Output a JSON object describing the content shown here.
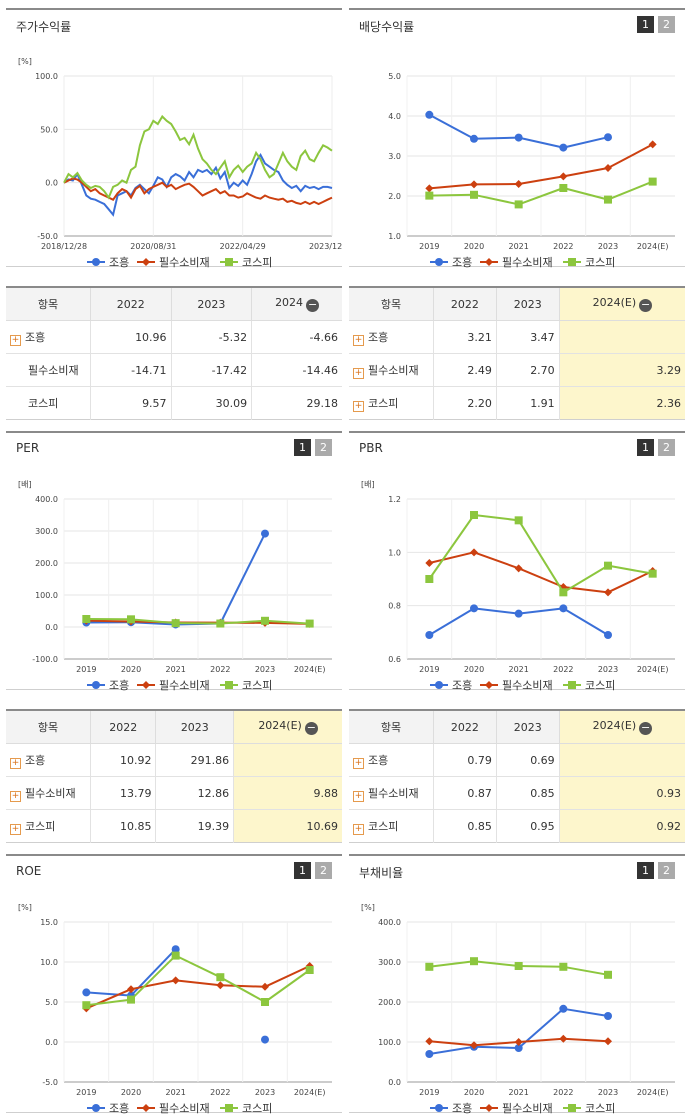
{
  "panels": {
    "stock": {
      "title": "주가수익률",
      "unit": "[%]"
    },
    "dividend": {
      "title": "배당수익률"
    },
    "per": {
      "title": "PER",
      "unit": "[배]"
    },
    "pbr": {
      "title": "PBR",
      "unit": "[배]"
    },
    "roe": {
      "title": "ROE",
      "unit": "[%]"
    },
    "debt": {
      "title": "부채비율",
      "unit": "[%]"
    }
  },
  "pager": {
    "one": "1",
    "two": "2"
  },
  "legend": {
    "s1": "조흥",
    "s2": "필수소비재",
    "s3": "코스피"
  },
  "colors": {
    "s1": "#3a6fd8",
    "s2": "#cc4010",
    "s3": "#8cc63e"
  },
  "tables": {
    "stock": {
      "headers": [
        "항목",
        "2022",
        "2023",
        "2024"
      ],
      "rows": [
        {
          "label": "조흥",
          "values": [
            "10.96",
            "-5.32",
            "-4.66"
          ]
        },
        {
          "label": "필수소비재",
          "values": [
            "-14.71",
            "-17.42",
            "-14.46"
          ]
        },
        {
          "label": "코스피",
          "values": [
            "9.57",
            "30.09",
            "29.18"
          ]
        }
      ]
    },
    "dividend": {
      "headers": [
        "항목",
        "2022",
        "2023",
        "2024(E)"
      ],
      "rows": [
        {
          "label": "조흥",
          "values": [
            "3.21",
            "3.47",
            ""
          ]
        },
        {
          "label": "필수소비재",
          "values": [
            "2.49",
            "2.70",
            "3.29"
          ]
        },
        {
          "label": "코스피",
          "values": [
            "2.20",
            "1.91",
            "2.36"
          ]
        }
      ]
    },
    "per": {
      "headers": [
        "항목",
        "2022",
        "2023",
        "2024(E)"
      ],
      "rows": [
        {
          "label": "조흥",
          "values": [
            "10.92",
            "291.86",
            ""
          ]
        },
        {
          "label": "필수소비재",
          "values": [
            "13.79",
            "12.86",
            "9.88"
          ]
        },
        {
          "label": "코스피",
          "values": [
            "10.85",
            "19.39",
            "10.69"
          ]
        }
      ]
    },
    "pbr": {
      "headers": [
        "항목",
        "2022",
        "2023",
        "2024(E)"
      ],
      "rows": [
        {
          "label": "조흥",
          "values": [
            "0.79",
            "0.69",
            ""
          ]
        },
        {
          "label": "필수소비재",
          "values": [
            "0.87",
            "0.85",
            "0.93"
          ]
        },
        {
          "label": "코스피",
          "values": [
            "0.85",
            "0.95",
            "0.92"
          ]
        }
      ]
    }
  },
  "chart_data": [
    {
      "id": "stock",
      "type": "line",
      "title": "주가수익률",
      "ylabel": "[%]",
      "ylim": [
        -50,
        100
      ],
      "yticks": [
        "100.0",
        "50.0",
        "0.0",
        "-50.0"
      ],
      "xticks": [
        "2018/12/28",
        "2020/08/31",
        "2022/04/29",
        "2023/12/28"
      ],
      "x_range": [
        0,
        60
      ],
      "series": [
        {
          "name": "조흥",
          "x": [
            0,
            1,
            2,
            3,
            4,
            5,
            6,
            7,
            8,
            9,
            10,
            11,
            12,
            13,
            14,
            15,
            16,
            17,
            18,
            19,
            20,
            21,
            22,
            23,
            24,
            25,
            26,
            27,
            28,
            29,
            30,
            31,
            32,
            33,
            34,
            35,
            36,
            37,
            38,
            39,
            40,
            41,
            42,
            43,
            44,
            45,
            46,
            47,
            48,
            49,
            50,
            51,
            52,
            53,
            54,
            55,
            56,
            57,
            58,
            59,
            60
          ],
          "values": [
            0,
            3,
            2,
            8,
            -2,
            -12,
            -15,
            -16,
            -18,
            -20,
            -25,
            -30,
            -12,
            -10,
            -8,
            -12,
            -5,
            -2,
            -6,
            -10,
            -3,
            5,
            3,
            -4,
            5,
            8,
            6,
            2,
            10,
            5,
            12,
            10,
            12,
            8,
            14,
            4,
            10,
            -5,
            0,
            -3,
            2,
            -2,
            8,
            20,
            26,
            18,
            15,
            12,
            10,
            2,
            -2,
            -5,
            -3,
            -8,
            -3,
            -5,
            -4,
            -6,
            -4,
            -4,
            -5
          ]
        },
        {
          "name": "필수소비재",
          "x": [
            0,
            1,
            2,
            3,
            4,
            5,
            6,
            7,
            8,
            9,
            10,
            11,
            12,
            13,
            14,
            15,
            16,
            17,
            18,
            19,
            20,
            21,
            22,
            23,
            24,
            25,
            26,
            27,
            28,
            29,
            30,
            31,
            32,
            33,
            34,
            35,
            36,
            37,
            38,
            39,
            40,
            41,
            42,
            43,
            44,
            45,
            46,
            47,
            48,
            49,
            50,
            51,
            52,
            53,
            54,
            55,
            56,
            57,
            58,
            59,
            60
          ],
          "values": [
            0,
            2,
            4,
            3,
            0,
            -4,
            -8,
            -6,
            -10,
            -12,
            -14,
            -16,
            -10,
            -6,
            -8,
            -14,
            -6,
            -3,
            -10,
            -6,
            -4,
            -2,
            0,
            -4,
            -2,
            -6,
            -4,
            -2,
            -1,
            -4,
            -8,
            -12,
            -10,
            -8,
            -6,
            -10,
            -8,
            -12,
            -12,
            -14,
            -13,
            -10,
            -12,
            -14,
            -15,
            -12,
            -14,
            -15,
            -16,
            -15,
            -18,
            -17,
            -19,
            -20,
            -18,
            -20,
            -18,
            -20,
            -18,
            -16,
            -14
          ]
        },
        {
          "name": "코스피",
          "x": [
            0,
            1,
            2,
            3,
            4,
            5,
            6,
            7,
            8,
            9,
            10,
            11,
            12,
            13,
            14,
            15,
            16,
            17,
            18,
            19,
            20,
            21,
            22,
            23,
            24,
            25,
            26,
            27,
            28,
            29,
            30,
            31,
            32,
            33,
            34,
            35,
            36,
            37,
            38,
            39,
            40,
            41,
            42,
            43,
            44,
            45,
            46,
            47,
            48,
            49,
            50,
            51,
            52,
            53,
            54,
            55,
            56,
            57,
            58,
            59,
            60
          ],
          "values": [
            0,
            8,
            5,
            9,
            2,
            -2,
            -5,
            -3,
            -4,
            -8,
            -14,
            -4,
            -2,
            2,
            0,
            12,
            15,
            35,
            48,
            50,
            58,
            55,
            62,
            58,
            55,
            48,
            40,
            42,
            36,
            45,
            32,
            22,
            18,
            12,
            8,
            14,
            20,
            5,
            12,
            16,
            10,
            15,
            18,
            28,
            22,
            12,
            5,
            8,
            18,
            28,
            20,
            15,
            12,
            25,
            30,
            22,
            20,
            28,
            35,
            33,
            30
          ]
        }
      ]
    },
    {
      "id": "dividend",
      "type": "line",
      "title": "배당수익률",
      "ylim": [
        1.0,
        5.0
      ],
      "yticks": [
        "5.0",
        "4.0",
        "3.0",
        "2.0",
        "1.0"
      ],
      "categories": [
        "2019",
        "2020",
        "2021",
        "2022",
        "2023",
        "2024(E)"
      ],
      "series": [
        {
          "name": "조흥",
          "values": [
            4.03,
            3.43,
            3.46,
            3.21,
            3.47,
            null
          ]
        },
        {
          "name": "필수소비재",
          "values": [
            2.19,
            2.29,
            2.3,
            2.49,
            2.7,
            3.29
          ]
        },
        {
          "name": "코스피",
          "values": [
            2.01,
            2.03,
            1.79,
            2.2,
            1.91,
            2.36
          ]
        }
      ]
    },
    {
      "id": "per",
      "type": "line",
      "title": "PER",
      "ylabel": "[배]",
      "ylim": [
        -100,
        400
      ],
      "yticks": [
        "400.0",
        "300.0",
        "200.0",
        "100.0",
        "0.0",
        "-100.0"
      ],
      "categories": [
        "2019",
        "2020",
        "2021",
        "2022",
        "2023",
        "2024(E)"
      ],
      "series": [
        {
          "name": "조흥",
          "values": [
            14,
            15,
            8,
            10.92,
            291.86,
            null
          ]
        },
        {
          "name": "필수소비재",
          "values": [
            20,
            17,
            14,
            13.79,
            12.86,
            9.88
          ]
        },
        {
          "name": "코스피",
          "values": [
            25,
            24,
            12,
            10.85,
            19.39,
            10.69
          ]
        }
      ]
    },
    {
      "id": "pbr",
      "type": "line",
      "title": "PBR",
      "ylabel": "[배]",
      "ylim": [
        0.6,
        1.2
      ],
      "yticks": [
        "1.2",
        "1.0",
        "0.8",
        "0.6"
      ],
      "categories": [
        "2019",
        "2020",
        "2021",
        "2022",
        "2023",
        "2024(E)"
      ],
      "series": [
        {
          "name": "조흥",
          "values": [
            0.69,
            0.79,
            0.77,
            0.79,
            0.69,
            null
          ]
        },
        {
          "name": "필수소비재",
          "values": [
            0.96,
            1.0,
            0.94,
            0.87,
            0.85,
            0.93
          ]
        },
        {
          "name": "코스피",
          "values": [
            0.9,
            1.14,
            1.12,
            0.85,
            0.95,
            0.92
          ]
        }
      ]
    },
    {
      "id": "roe",
      "type": "line",
      "title": "ROE",
      "ylabel": "[%]",
      "ylim": [
        -5,
        15
      ],
      "yticks": [
        "15.0",
        "10.0",
        "5.0",
        "0.0",
        "-5.0"
      ],
      "categories": [
        "2019",
        "2020",
        "2021",
        "2022",
        "2023",
        "2024(E)"
      ],
      "series": [
        {
          "name": "조흥",
          "values": [
            6.2,
            5.8,
            11.6,
            null,
            0.3,
            null
          ],
          "connect": [
            [
              0,
              1
            ],
            [
              1,
              2
            ]
          ]
        },
        {
          "name": "필수소비재",
          "values": [
            4.2,
            6.6,
            7.7,
            7.1,
            6.9,
            9.5
          ]
        },
        {
          "name": "코스피",
          "values": [
            4.6,
            5.3,
            10.8,
            8.1,
            5.0,
            9.0
          ]
        }
      ]
    },
    {
      "id": "debt",
      "type": "line",
      "title": "부채비율",
      "ylabel": "[%]",
      "ylim": [
        0,
        400
      ],
      "yticks": [
        "400.0",
        "300.0",
        "200.0",
        "100.0",
        "0.0"
      ],
      "categories": [
        "2019",
        "2020",
        "2021",
        "2022",
        "2023",
        "2024(E)"
      ],
      "series": [
        {
          "name": "조흥",
          "values": [
            70,
            88,
            85,
            183,
            165,
            null
          ]
        },
        {
          "name": "필수소비재",
          "values": [
            102,
            92,
            100,
            108,
            102,
            null
          ]
        },
        {
          "name": "코스피",
          "values": [
            288,
            302,
            290,
            288,
            268,
            null
          ]
        }
      ]
    }
  ]
}
